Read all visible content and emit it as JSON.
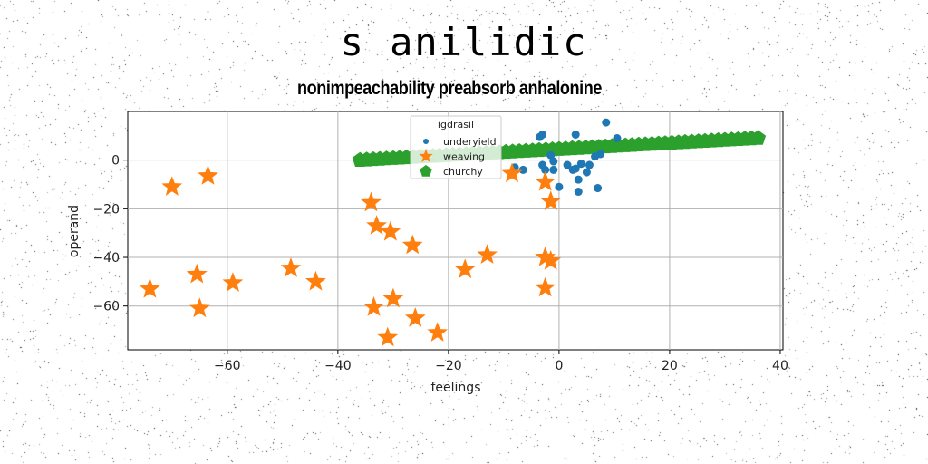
{
  "title": "s anilidic",
  "subtitle": "nonimpeachability preabsorb anhalonine",
  "chart_data": {
    "type": "scatter",
    "xlabel": "feelings",
    "ylabel": "operand",
    "xlim": [
      -78,
      40.5
    ],
    "ylim": [
      -78,
      20
    ],
    "xticks": [
      -60,
      -40,
      -20,
      0,
      20,
      40
    ],
    "yticks": [
      0,
      -20,
      -40,
      -60
    ],
    "grid": true,
    "legend": {
      "title": "igdrasil",
      "placement": "top-center"
    },
    "series": [
      {
        "name": "underyield",
        "marker": "circle",
        "color": "#1f77b4",
        "points": [
          [
            8.5,
            15.5
          ],
          [
            -8,
            -3
          ],
          [
            -6.5,
            -4
          ],
          [
            -3.5,
            9.5
          ],
          [
            -3,
            10.5
          ],
          [
            -3,
            -2
          ],
          [
            -2.5,
            -4
          ],
          [
            -1.5,
            2
          ],
          [
            -1,
            -0.5
          ],
          [
            -1,
            -4
          ],
          [
            0,
            -11
          ],
          [
            1.5,
            -2
          ],
          [
            2.5,
            -4
          ],
          [
            3,
            -3.5
          ],
          [
            3,
            10.5
          ],
          [
            4,
            -1.5
          ],
          [
            3.5,
            -8
          ],
          [
            3.5,
            -13
          ],
          [
            5,
            -5
          ],
          [
            5.5,
            -2
          ],
          [
            6.5,
            1.5
          ],
          [
            7,
            -11.5
          ],
          [
            7.5,
            2.5
          ],
          [
            10.5,
            9
          ]
        ]
      },
      {
        "name": "weaving",
        "marker": "star",
        "color": "#ff7f0e",
        "points": [
          [
            -63.5,
            -6.5
          ],
          [
            -70,
            -11
          ],
          [
            -74,
            -53
          ],
          [
            -65.5,
            -47
          ],
          [
            -65,
            -61
          ],
          [
            -59,
            -50.5
          ],
          [
            -48.5,
            -44.5
          ],
          [
            -44,
            -50
          ],
          [
            -34,
            -17.5
          ],
          [
            -33,
            -27
          ],
          [
            -30.5,
            -29.5
          ],
          [
            -26.5,
            -35
          ],
          [
            -33.5,
            -60.5
          ],
          [
            -30,
            -57
          ],
          [
            -31,
            -73
          ],
          [
            -26,
            -65
          ],
          [
            -22,
            -71
          ],
          [
            -17,
            -45
          ],
          [
            -13,
            -39
          ],
          [
            -8.5,
            -5.5
          ],
          [
            -2.5,
            -9
          ],
          [
            -1.5,
            -17
          ],
          [
            -2.5,
            -40
          ],
          [
            -1.5,
            -41.5
          ],
          [
            -2.5,
            -52.5
          ]
        ]
      },
      {
        "name": "churchy",
        "marker": "pentagon",
        "color": "#2ca02c",
        "points": "linear x from -36 to 36, y from 0 to 9"
      }
    ]
  }
}
